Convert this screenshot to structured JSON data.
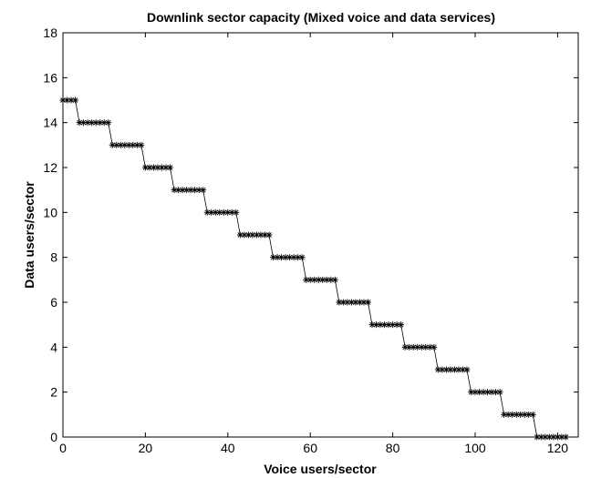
{
  "chart_data": {
    "type": "line",
    "title": "Downlink sector capacity (Mixed voice and data services)",
    "xlabel": "Voice users/sector",
    "ylabel": "Data users/sector",
    "xlim": [
      0,
      125
    ],
    "ylim": [
      0,
      18
    ],
    "xticks": [
      0,
      20,
      40,
      60,
      80,
      100,
      120
    ],
    "yticks": [
      0,
      2,
      4,
      6,
      8,
      10,
      12,
      14,
      16,
      18
    ],
    "grid": false,
    "marker": "asterisk",
    "line_color": "#000000",
    "series": [
      {
        "steps": [
          {
            "y": 15,
            "x_start": 0,
            "x_end": 3
          },
          {
            "y": 14,
            "x_start": 4,
            "x_end": 11
          },
          {
            "y": 13,
            "x_start": 12,
            "x_end": 19
          },
          {
            "y": 12,
            "x_start": 20,
            "x_end": 26
          },
          {
            "y": 11,
            "x_start": 27,
            "x_end": 34
          },
          {
            "y": 10,
            "x_start": 35,
            "x_end": 42
          },
          {
            "y": 9,
            "x_start": 43,
            "x_end": 50
          },
          {
            "y": 8,
            "x_start": 51,
            "x_end": 58
          },
          {
            "y": 7,
            "x_start": 59,
            "x_end": 66
          },
          {
            "y": 6,
            "x_start": 67,
            "x_end": 74
          },
          {
            "y": 5,
            "x_start": 75,
            "x_end": 82
          },
          {
            "y": 4,
            "x_start": 83,
            "x_end": 90
          },
          {
            "y": 3,
            "x_start": 91,
            "x_end": 98
          },
          {
            "y": 2,
            "x_start": 99,
            "x_end": 106
          },
          {
            "y": 1,
            "x_start": 107,
            "x_end": 114
          },
          {
            "y": 0,
            "x_start": 115,
            "x_end": 122
          }
        ]
      }
    ]
  }
}
